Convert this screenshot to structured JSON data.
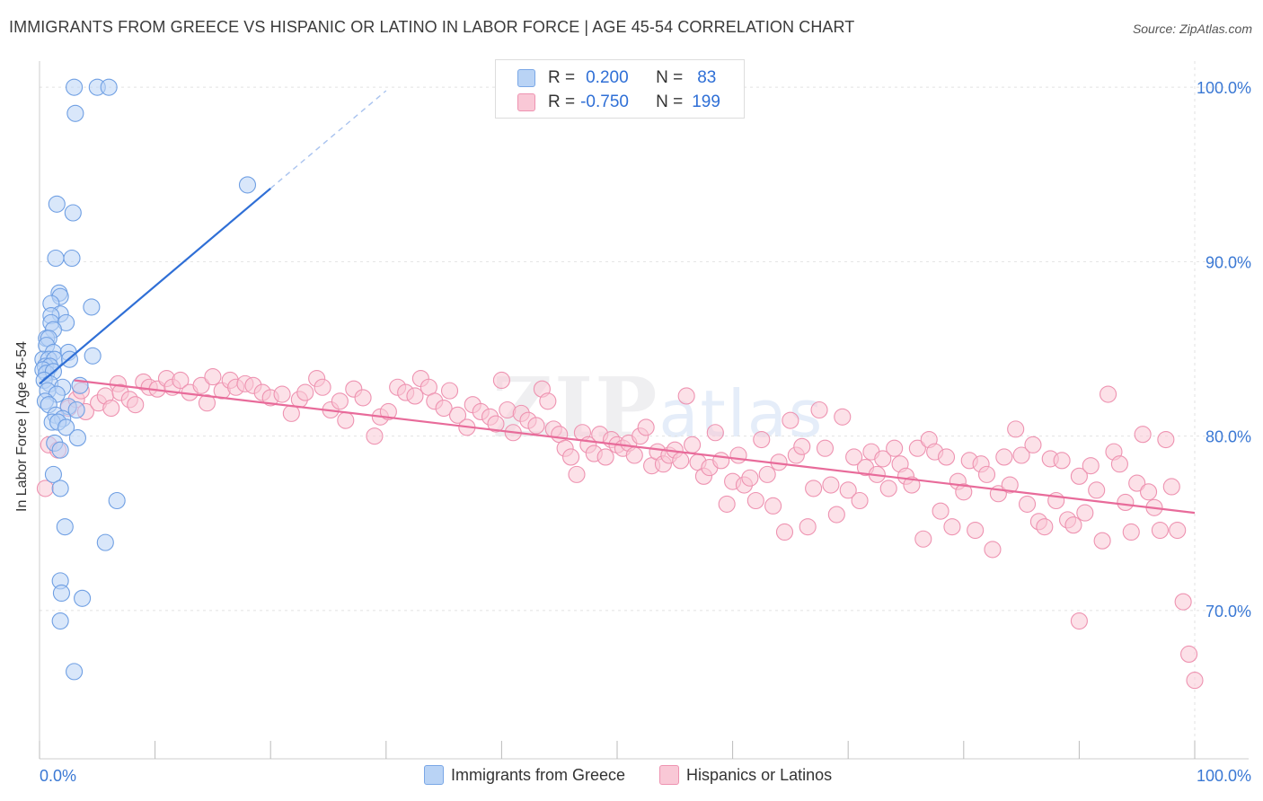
{
  "title": "IMMIGRANTS FROM GREECE VS HISPANIC OR LATINO IN LABOR FORCE | AGE 45-54 CORRELATION CHART",
  "source": "Source: ZipAtlas.com",
  "watermark": {
    "zip": "ZIP",
    "atlas": "atlas"
  },
  "legend": {
    "series1": {
      "r_label": "R =",
      "r_value": "0.200",
      "n_label": "N =",
      "n_value": "83"
    },
    "series2": {
      "r_label": "R =",
      "r_value": "-0.750",
      "n_label": "N =",
      "n_value": "199"
    }
  },
  "colors": {
    "blue_fill": "#b9d3f5",
    "blue_stroke": "#6f9fe3",
    "blue_line": "#2f6fd6",
    "pink_fill": "#f9c8d6",
    "pink_stroke": "#ee93b1",
    "pink_line": "#e86b9a",
    "tick_label": "#3a78d4",
    "grid": "#e2e2e2"
  },
  "chart_data": {
    "type": "scatter",
    "title": "IMMIGRANTS FROM GREECE VS HISPANIC OR LATINO IN LABOR FORCE | AGE 45-54 CORRELATION CHART",
    "ylabel": "In Labor Force | Age 45-54",
    "xlabel": "",
    "xlim": [
      0,
      100
    ],
    "ylim": [
      61.5,
      101.5
    ],
    "x_tick_labels": [
      "0.0%",
      "100.0%"
    ],
    "y_ticks": [
      70,
      80,
      90,
      100
    ],
    "y_tick_labels": [
      "70.0%",
      "80.0%",
      "90.0%",
      "100.0%"
    ],
    "grid": true,
    "legend_position": "top-center",
    "series": [
      {
        "name": "Immigrants from Greece",
        "color": "blue",
        "trend": {
          "x": [
            0,
            20
          ],
          "y": [
            83.0,
            94.2
          ],
          "dashed_to": [
            30,
            100
          ]
        },
        "points": [
          [
            3.0,
            100
          ],
          [
            5.0,
            100
          ],
          [
            6.0,
            100
          ],
          [
            3.1,
            98.5
          ],
          [
            18.0,
            94.4
          ],
          [
            1.5,
            93.3
          ],
          [
            2.9,
            92.8
          ],
          [
            1.4,
            90.2
          ],
          [
            2.8,
            90.2
          ],
          [
            1.7,
            88.2
          ],
          [
            1.8,
            88.0
          ],
          [
            1.0,
            87.6
          ],
          [
            4.5,
            87.4
          ],
          [
            1.8,
            87.0
          ],
          [
            1.0,
            86.9
          ],
          [
            1.0,
            86.5
          ],
          [
            2.3,
            86.5
          ],
          [
            1.2,
            86.1
          ],
          [
            0.6,
            85.6
          ],
          [
            0.8,
            85.6
          ],
          [
            0.6,
            85.2
          ],
          [
            1.2,
            84.8
          ],
          [
            2.5,
            84.8
          ],
          [
            4.6,
            84.6
          ],
          [
            0.3,
            84.4
          ],
          [
            0.8,
            84.4
          ],
          [
            1.3,
            84.4
          ],
          [
            2.6,
            84.4
          ],
          [
            0.5,
            84.0
          ],
          [
            0.9,
            84.0
          ],
          [
            0.3,
            83.8
          ],
          [
            0.6,
            83.6
          ],
          [
            1.2,
            83.7
          ],
          [
            0.4,
            83.2
          ],
          [
            0.9,
            83.0
          ],
          [
            3.5,
            82.9
          ],
          [
            2.0,
            82.8
          ],
          [
            0.7,
            82.6
          ],
          [
            1.5,
            82.4
          ],
          [
            0.5,
            82.0
          ],
          [
            0.8,
            81.8
          ],
          [
            2.5,
            81.7
          ],
          [
            3.2,
            81.5
          ],
          [
            1.4,
            81.2
          ],
          [
            2.0,
            81.0
          ],
          [
            1.1,
            80.8
          ],
          [
            1.6,
            80.8
          ],
          [
            2.3,
            80.5
          ],
          [
            3.3,
            79.9
          ],
          [
            1.3,
            79.6
          ],
          [
            1.8,
            79.2
          ],
          [
            1.2,
            77.8
          ],
          [
            1.8,
            77.0
          ],
          [
            6.7,
            76.3
          ],
          [
            2.2,
            74.8
          ],
          [
            5.7,
            73.9
          ],
          [
            1.8,
            71.7
          ],
          [
            1.9,
            71.0
          ],
          [
            3.7,
            70.7
          ],
          [
            1.8,
            69.4
          ],
          [
            3.0,
            66.5
          ]
        ]
      },
      {
        "name": "Hispanics or Latinos",
        "color": "pink",
        "trend": {
          "x": [
            3,
            100
          ],
          "y": [
            83.2,
            75.6
          ]
        },
        "points": [
          [
            0.5,
            77.0
          ],
          [
            0.8,
            79.5
          ],
          [
            1.6,
            79.2
          ],
          [
            2.5,
            81.6
          ],
          [
            3.2,
            82.1
          ],
          [
            3.6,
            82.6
          ],
          [
            4.0,
            81.4
          ],
          [
            5.1,
            81.9
          ],
          [
            5.7,
            82.3
          ],
          [
            6.2,
            81.6
          ],
          [
            6.8,
            83.0
          ],
          [
            7.0,
            82.5
          ],
          [
            7.8,
            82.1
          ],
          [
            8.3,
            81.8
          ],
          [
            9.0,
            83.1
          ],
          [
            9.5,
            82.8
          ],
          [
            10.2,
            82.7
          ],
          [
            11.0,
            83.3
          ],
          [
            11.5,
            82.8
          ],
          [
            12.2,
            83.2
          ],
          [
            13.0,
            82.5
          ],
          [
            14.0,
            82.9
          ],
          [
            14.5,
            81.9
          ],
          [
            15.0,
            83.4
          ],
          [
            15.8,
            82.6
          ],
          [
            16.5,
            83.2
          ],
          [
            17.0,
            82.8
          ],
          [
            17.8,
            83.0
          ],
          [
            18.5,
            82.9
          ],
          [
            19.3,
            82.5
          ],
          [
            20.0,
            82.2
          ],
          [
            21.0,
            82.4
          ],
          [
            21.8,
            81.3
          ],
          [
            22.5,
            82.1
          ],
          [
            23.0,
            82.5
          ],
          [
            24.0,
            83.3
          ],
          [
            24.5,
            82.8
          ],
          [
            25.2,
            81.5
          ],
          [
            26.0,
            82.0
          ],
          [
            26.5,
            80.9
          ],
          [
            27.2,
            82.7
          ],
          [
            28.0,
            82.2
          ],
          [
            29.0,
            80.0
          ],
          [
            29.5,
            81.1
          ],
          [
            30.2,
            81.4
          ],
          [
            31.0,
            82.8
          ],
          [
            31.7,
            82.5
          ],
          [
            32.5,
            82.3
          ],
          [
            33.0,
            83.3
          ],
          [
            33.7,
            82.8
          ],
          [
            34.2,
            82.0
          ],
          [
            35.0,
            81.6
          ],
          [
            35.5,
            82.6
          ],
          [
            36.2,
            81.2
          ],
          [
            37.0,
            80.5
          ],
          [
            37.5,
            81.8
          ],
          [
            38.2,
            81.4
          ],
          [
            39.0,
            81.1
          ],
          [
            39.5,
            80.7
          ],
          [
            40.0,
            83.2
          ],
          [
            40.5,
            81.5
          ],
          [
            41.0,
            80.2
          ],
          [
            41.7,
            81.3
          ],
          [
            42.3,
            80.9
          ],
          [
            43.0,
            80.6
          ],
          [
            43.5,
            82.7
          ],
          [
            44.0,
            82.0
          ],
          [
            44.5,
            80.4
          ],
          [
            45.0,
            80.1
          ],
          [
            45.5,
            79.3
          ],
          [
            46.0,
            78.8
          ],
          [
            46.5,
            77.8
          ],
          [
            47.0,
            80.2
          ],
          [
            47.5,
            79.5
          ],
          [
            48.0,
            79.0
          ],
          [
            48.5,
            80.1
          ],
          [
            49.0,
            78.8
          ],
          [
            49.5,
            79.8
          ],
          [
            50.0,
            79.5
          ],
          [
            50.5,
            79.3
          ],
          [
            51.0,
            79.6
          ],
          [
            51.5,
            78.9
          ],
          [
            52.0,
            80.0
          ],
          [
            52.5,
            80.5
          ],
          [
            53.0,
            78.3
          ],
          [
            53.5,
            79.1
          ],
          [
            54.0,
            78.4
          ],
          [
            54.5,
            78.9
          ],
          [
            55.0,
            79.2
          ],
          [
            55.5,
            78.6
          ],
          [
            56.0,
            82.3
          ],
          [
            56.5,
            79.5
          ],
          [
            57.0,
            78.5
          ],
          [
            57.5,
            77.7
          ],
          [
            58.0,
            78.2
          ],
          [
            58.5,
            80.2
          ],
          [
            59.0,
            78.6
          ],
          [
            59.5,
            76.1
          ],
          [
            60.0,
            77.4
          ],
          [
            60.5,
            78.9
          ],
          [
            61.0,
            77.2
          ],
          [
            61.5,
            77.6
          ],
          [
            62.0,
            76.3
          ],
          [
            62.5,
            79.8
          ],
          [
            63.0,
            77.8
          ],
          [
            63.5,
            76.0
          ],
          [
            64.0,
            78.5
          ],
          [
            64.5,
            74.5
          ],
          [
            65.0,
            80.9
          ],
          [
            65.5,
            78.9
          ],
          [
            66.0,
            79.4
          ],
          [
            66.5,
            74.8
          ],
          [
            67.0,
            77.0
          ],
          [
            67.5,
            81.5
          ],
          [
            68.0,
            79.3
          ],
          [
            68.5,
            77.2
          ],
          [
            69.0,
            75.5
          ],
          [
            69.5,
            81.1
          ],
          [
            70.0,
            76.9
          ],
          [
            70.5,
            78.8
          ],
          [
            71.0,
            76.3
          ],
          [
            71.5,
            78.2
          ],
          [
            72.0,
            79.1
          ],
          [
            72.5,
            77.8
          ],
          [
            73.0,
            78.7
          ],
          [
            73.5,
            77.0
          ],
          [
            74.0,
            79.3
          ],
          [
            74.5,
            78.4
          ],
          [
            75.0,
            77.7
          ],
          [
            75.5,
            77.2
          ],
          [
            76.0,
            79.3
          ],
          [
            76.5,
            74.1
          ],
          [
            77.0,
            79.8
          ],
          [
            77.5,
            79.1
          ],
          [
            78.0,
            75.7
          ],
          [
            78.5,
            78.8
          ],
          [
            79.0,
            74.8
          ],
          [
            79.5,
            77.4
          ],
          [
            80.0,
            76.8
          ],
          [
            80.5,
            78.6
          ],
          [
            81.0,
            74.6
          ],
          [
            81.5,
            78.4
          ],
          [
            82.0,
            77.8
          ],
          [
            82.5,
            73.5
          ],
          [
            83.0,
            76.7
          ],
          [
            83.5,
            78.8
          ],
          [
            84.0,
            77.2
          ],
          [
            84.5,
            80.4
          ],
          [
            85.0,
            78.9
          ],
          [
            85.5,
            76.1
          ],
          [
            86.0,
            79.5
          ],
          [
            86.5,
            75.1
          ],
          [
            87.0,
            74.8
          ],
          [
            87.5,
            78.7
          ],
          [
            88.0,
            76.3
          ],
          [
            88.5,
            78.6
          ],
          [
            89.0,
            75.2
          ],
          [
            89.5,
            74.9
          ],
          [
            90.0,
            77.7
          ],
          [
            90.5,
            75.6
          ],
          [
            91.0,
            78.3
          ],
          [
            91.5,
            76.9
          ],
          [
            92.0,
            74.0
          ],
          [
            92.5,
            82.4
          ],
          [
            93.0,
            79.1
          ],
          [
            93.5,
            78.4
          ],
          [
            94.0,
            76.2
          ],
          [
            94.5,
            74.5
          ],
          [
            95.0,
            77.3
          ],
          [
            95.5,
            80.1
          ],
          [
            96.0,
            76.8
          ],
          [
            96.5,
            75.9
          ],
          [
            97.0,
            74.6
          ],
          [
            97.5,
            79.8
          ],
          [
            98.0,
            77.1
          ],
          [
            98.5,
            74.6
          ],
          [
            99.0,
            70.5
          ],
          [
            99.5,
            67.5
          ],
          [
            100.0,
            66.0
          ],
          [
            90.0,
            69.4
          ]
        ]
      }
    ]
  }
}
